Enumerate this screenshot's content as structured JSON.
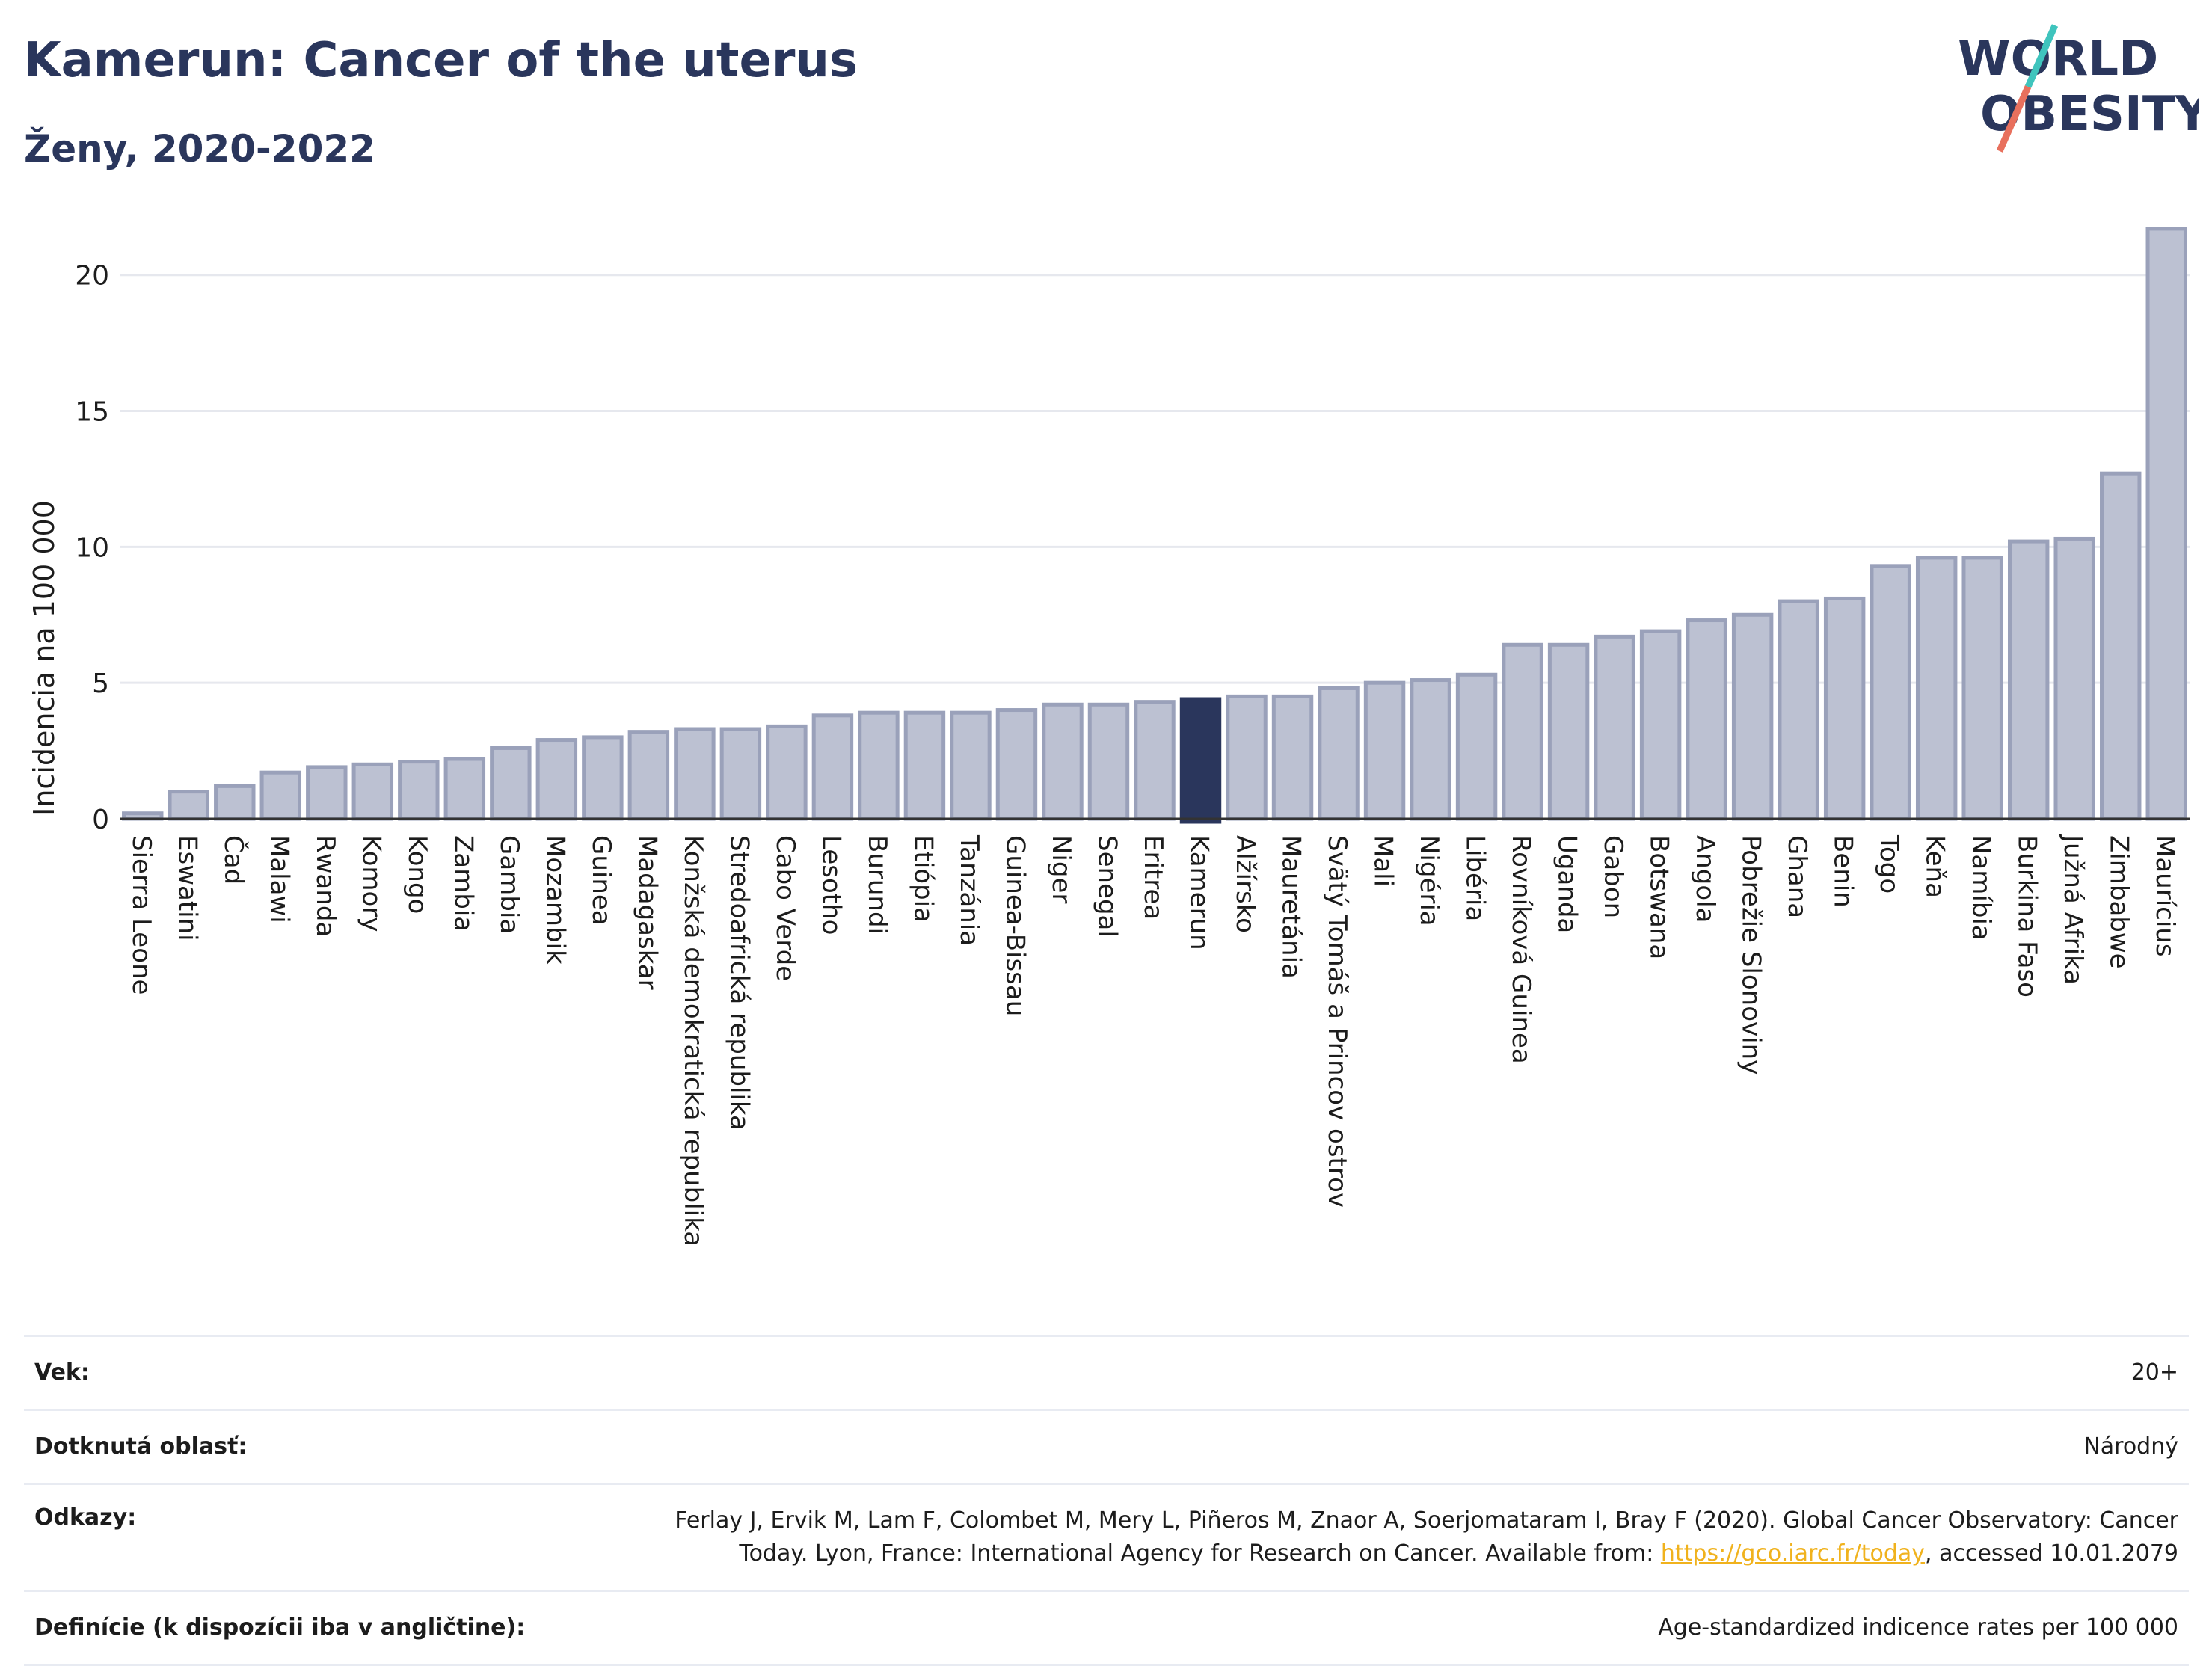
{
  "header": {
    "title": "Kamerun: Cancer of the uterus",
    "subtitle": "Ženy, 2020-2022"
  },
  "logo": {
    "line1": "WORLD",
    "line2": "OBESITY",
    "colors": {
      "text": "#2a365c",
      "slash_top": "#3fc4bd",
      "slash_bottom": "#e8705d"
    }
  },
  "chart_data": {
    "type": "bar",
    "ylabel": "Incidencia na 100 000",
    "ylim": [
      0,
      22
    ],
    "yticks": [
      0,
      5,
      10,
      15,
      20
    ],
    "grid": true,
    "highlight": "Kamerun",
    "colors": {
      "bar": "#bcc1d2",
      "bar_edge": "#9aa1ba",
      "highlight": "#2a365c",
      "grid": "#e6e8ee",
      "axis": "#333333"
    },
    "categories": [
      "Sierra Leone",
      "Eswatini",
      "Čad",
      "Malawi",
      "Rwanda",
      "Komory",
      "Kongo",
      "Zambia",
      "Gambia",
      "Mozambik",
      "Guinea",
      "Madagaskar",
      "Konžská demokratická republika",
      "Stredoafrická republika",
      "Cabo Verde",
      "Lesotho",
      "Burundi",
      "Etiópia",
      "Tanzánia",
      "Guinea-Bissau",
      "Niger",
      "Senegal",
      "Eritrea",
      "Kamerun",
      "Alžírsko",
      "Mauretánia",
      "Svätý Tomáš a Princov ostrov",
      "Mali",
      "Nigéria",
      "Libéria",
      "Rovníková Guinea",
      "Uganda",
      "Gabon",
      "Botswana",
      "Angola",
      "Pobrežie Slonoviny",
      "Ghana",
      "Benin",
      "Togo",
      "Keňa",
      "Namíbia",
      "Burkina Faso",
      "Južná Afrika",
      "Zimbabwe",
      "Maurícius"
    ],
    "values": [
      0.2,
      1.0,
      1.2,
      1.7,
      1.9,
      2.0,
      2.1,
      2.2,
      2.6,
      2.9,
      3.0,
      3.2,
      3.3,
      3.3,
      3.4,
      3.8,
      3.9,
      3.9,
      3.9,
      4.0,
      4.2,
      4.2,
      4.3,
      4.4,
      4.5,
      4.5,
      4.8,
      5.0,
      5.1,
      5.3,
      6.4,
      6.4,
      6.7,
      6.9,
      7.3,
      7.5,
      8.0,
      8.1,
      9.3,
      9.6,
      9.6,
      10.2,
      10.3,
      12.7,
      21.7
    ]
  },
  "info": {
    "age_label": "Vek:",
    "age_value": "20+",
    "area_label": "Dotknutá oblasť:",
    "area_value": "Národný",
    "refs_label": "Odkazy:",
    "refs_line1": "Ferlay J, Ervik M, Lam F, Colombet M, Mery L, Piñeros M, Znaor A, Soerjomataram I, Bray F (2020). Global Cancer Observatory: Cancer",
    "refs_line2_pre": "Today. Lyon, France: International Agency for Research on Cancer. Available from: ",
    "refs_link": "https://gco.iarc.fr/today",
    "refs_line2_post": ", accessed 10.01.2079",
    "def_label": "Definície (k dispozícii iba v angličtine):",
    "def_value": "Age-standardized indicence rates per 100 000"
  }
}
